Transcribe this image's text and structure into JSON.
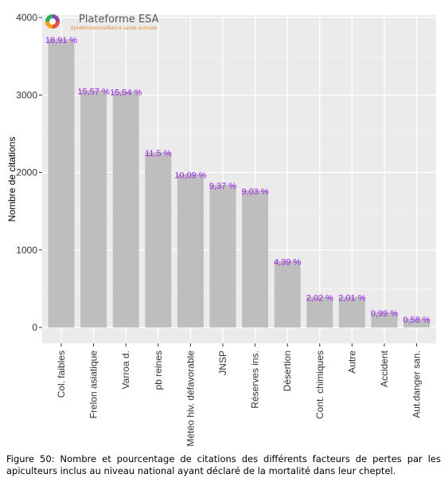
{
  "logo": {
    "title": "Plateforme ESA",
    "subtitle": "Epidémiosurveillance santé animale",
    "colors": [
      "#8e44ad",
      "#e74c3c",
      "#f39c12",
      "#27ae60"
    ]
  },
  "caption": "Figure 50: Nombre et pourcentage de citations des différents facteurs de pertes par les apiculteurs inclus au niveau national ayant déclaré de la mortalité dans leur cheptel.",
  "chart_data": {
    "type": "bar",
    "ylabel": "Nombre de citations",
    "xlabel": "",
    "ylim": [
      0,
      4000
    ],
    "yticks": [
      0,
      1000,
      2000,
      3000,
      4000
    ],
    "grid": true,
    "bar_color": "#bebebe",
    "panel_color": "#ebebeb",
    "label_color": "#a020f0",
    "categories": [
      "Col. faibles",
      "Frelon asiatique",
      "Varroa d.",
      "pb reines",
      "Météo hiv. défavorable",
      "JNSP",
      "Réserves ins.",
      "Désertion",
      "Cont. chimiques",
      "Autre",
      "Accident",
      "Aut.danger san."
    ],
    "values": [
      3720,
      3060,
      3050,
      2260,
      1980,
      1840,
      1770,
      860,
      395,
      395,
      195,
      115
    ],
    "labels": [
      "18,91 %",
      "15,57 %",
      "15,54 %",
      "11,5 %",
      "10,09 %",
      "9,37 %",
      "9,03 %",
      "4,39 %",
      "2,02 %",
      "2,01 %",
      "0,99 %",
      "0,58 %"
    ]
  }
}
